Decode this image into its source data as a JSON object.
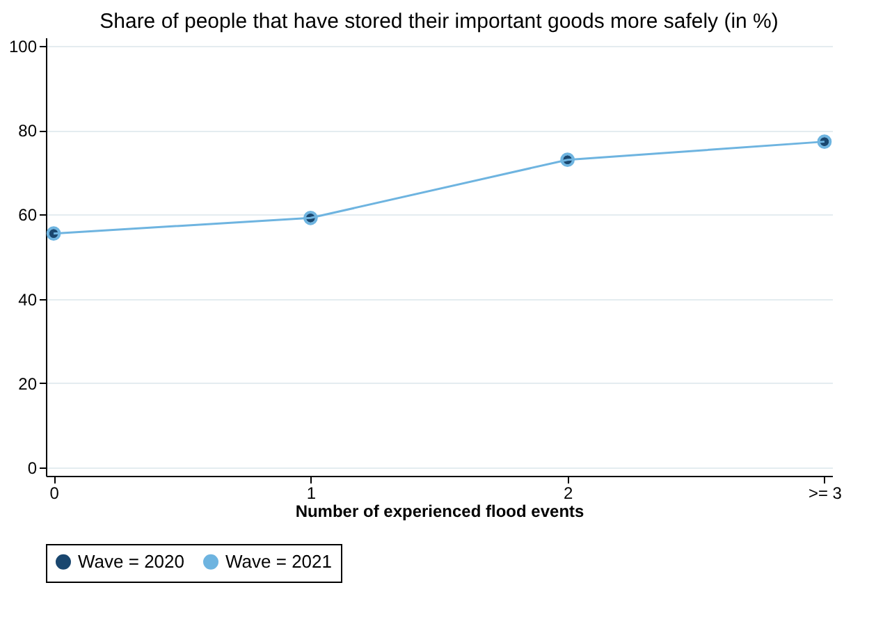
{
  "chart_data": {
    "type": "line",
    "title": "Share of people that have stored their important goods more safely (in %)",
    "xlabel": "Number of experienced flood events",
    "categories": [
      "0",
      "1",
      "2",
      ">= 3"
    ],
    "series": [
      {
        "name": "Wave = 2020",
        "color": "#1a476f",
        "type": "scatter",
        "values": [
          55.5,
          59.2,
          73.0,
          77.3
        ]
      },
      {
        "name": "Wave = 2021",
        "color": "#6eb4e0",
        "type": "line",
        "values": [
          55.5,
          59.2,
          73.0,
          77.3
        ]
      }
    ],
    "ylim": [
      -2,
      102
    ],
    "yticks": [
      0,
      20,
      40,
      60,
      80,
      100
    ],
    "grid": "y",
    "legend": "bottom",
    "marker": "circle",
    "line_style": "solid"
  }
}
